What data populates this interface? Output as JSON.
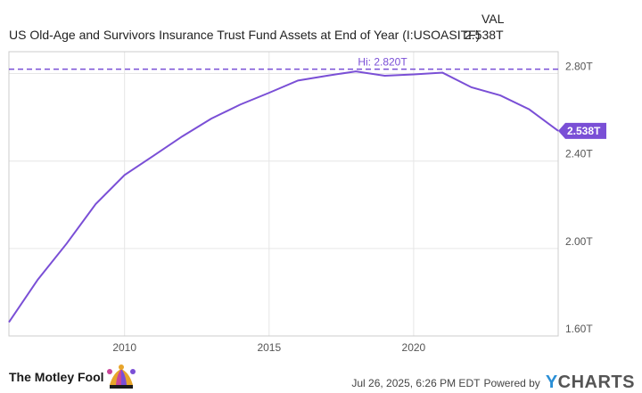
{
  "header": {
    "title": "US Old-Age and Survivors Insurance Trust Fund Assets at End of Year (I:USOASITF)",
    "col_label": "VAL",
    "value": "2.538T"
  },
  "footer": {
    "brand": "The Motley Fool",
    "timestamp": "Jul 26, 2025, 6:26 PM EDT",
    "powered_by": "Powered by",
    "provider_y": "Y",
    "provider_rest": "CHARTS"
  },
  "colors": {
    "line": "#7a4fd6",
    "grid": "#e6e6e6",
    "plot_border": "#cccccc"
  },
  "chart_data": {
    "type": "line",
    "title": "US Old-Age and Survivors Insurance Trust Fund Assets at End of Year (I:USOASITF)",
    "x": [
      2006,
      2007,
      2008,
      2009,
      2010,
      2011,
      2012,
      2013,
      2014,
      2015,
      2016,
      2017,
      2018,
      2019,
      2020,
      2021,
      2022,
      2023,
      2024,
      2025
    ],
    "series": [
      {
        "values": [
          1.663,
          1.858,
          2.023,
          2.203,
          2.336,
          2.424,
          2.513,
          2.594,
          2.658,
          2.712,
          2.768,
          2.79,
          2.81,
          2.79,
          2.796,
          2.804,
          2.737,
          2.7,
          2.636,
          2.538
        ]
      }
    ],
    "xlim": [
      2006,
      2025
    ],
    "ylim": [
      1.6,
      2.9
    ],
    "x_ticks": [
      2010,
      2015,
      2020
    ],
    "x_tick_labels": [
      "2010",
      "2015",
      "2020"
    ],
    "y_ticks": [
      1.6,
      2.0,
      2.4,
      2.8
    ],
    "y_tick_labels": [
      "1.60T",
      "2.00T",
      "2.40T",
      "2.80T"
    ],
    "high": {
      "value": 2.82,
      "label": "Hi: 2.820T"
    },
    "last": {
      "value": 2.538,
      "label": "2.538T"
    },
    "grid": true
  }
}
